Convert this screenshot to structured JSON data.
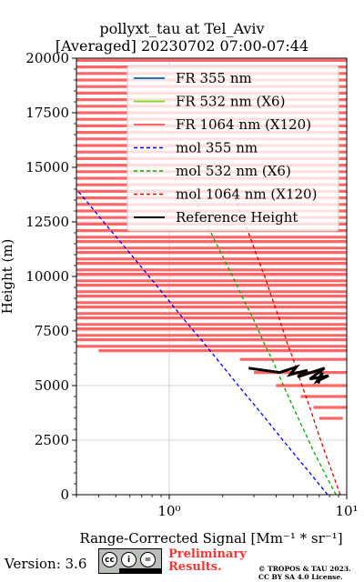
{
  "header": {
    "title_line1": "pollyxt_tau at Tel_Aviv",
    "title_line2": "[Averaged] 20230702 07:00-07:44"
  },
  "footer": {
    "version": "Version: 3.6",
    "cc_badge": [
      "cc",
      "i",
      "=",
      "BY",
      "SA"
    ],
    "preliminary_line1": "Preliminary",
    "preliminary_line2": "Results.",
    "copyright_line1": "© TROPOS & TAU 2023.",
    "copyright_line2": "CC BY SA 4.0 License."
  },
  "chart_data": {
    "type": "line",
    "xlabel": "Range-Corrected Signal [Mm⁻¹ * sr⁻¹]",
    "ylabel": "Height (m)",
    "xscale": "log",
    "xlim": [
      0.3,
      10
    ],
    "ylim": [
      0,
      20000
    ],
    "xticks": [
      1,
      10
    ],
    "xtick_labels": [
      "10⁰",
      "10¹"
    ],
    "yticks": [
      0,
      2500,
      5000,
      7500,
      10000,
      12500,
      15000,
      17500,
      20000
    ],
    "ytick_labels": [
      "0",
      "2500",
      "5000",
      "7500",
      "10000",
      "12500",
      "15000",
      "17500",
      "20000"
    ],
    "grid": true,
    "legend_position": "upper-right",
    "legend": [
      "FR 355 nm",
      "FR 532 nm (X6)",
      "FR 1064 nm (X120)",
      "mol 355 nm",
      "mol 532 nm (X6)",
      "mol 1064 nm (X120)",
      "Reference Height"
    ],
    "colors": {
      "fr355": "#1f77b4",
      "fr532": "#80df20",
      "fr1064": "#ff6666",
      "mol355": "#0000ee",
      "mol532": "#00aa00",
      "mol1064": "#dd0000",
      "ref": "#000000"
    },
    "series": [
      {
        "name": "FR 355 nm",
        "style": "solid",
        "x": [],
        "y": []
      },
      {
        "name": "FR 532 nm (X6)",
        "style": "solid",
        "x": [],
        "y": []
      },
      {
        "name": "FR 1064 nm (X120)",
        "style": "solid",
        "segments": [
          {
            "y": 3500,
            "x_min": 7.0,
            "x_max": 9.5
          },
          {
            "y": 4000,
            "x_min": 6.5,
            "x_max": 10.0
          },
          {
            "y": 4500,
            "x_min": 5.5,
            "x_max": 10.0
          },
          {
            "y": 5000,
            "x_min": 4.0,
            "x_max": 10.0
          },
          {
            "y": 5600,
            "x_min": 3.0,
            "x_max": 10.0
          },
          {
            "y": 6200,
            "x_min": 2.5,
            "x_max": 10.0
          },
          {
            "y": 6600,
            "x_min": 0.4,
            "x_max": 10.0
          },
          {
            "y": 6800,
            "x_min": 0.3,
            "x_max": 10.0
          },
          {
            "y": 7100,
            "x_min": 0.3,
            "x_max": 10.0
          },
          {
            "y": 7300,
            "x_min": 0.3,
            "x_max": 10.0
          },
          {
            "y": 7600,
            "x_min": 0.3,
            "x_max": 10.0
          },
          {
            "y": 7800,
            "x_min": 0.3,
            "x_max": 10.0
          },
          {
            "y": 8100,
            "x_min": 0.3,
            "x_max": 10.0
          },
          {
            "y": 8300,
            "x_min": 0.3,
            "x_max": 10.0
          },
          {
            "y": 8600,
            "x_min": 0.3,
            "x_max": 10.0
          },
          {
            "y": 8800,
            "x_min": 0.3,
            "x_max": 10.0
          },
          {
            "y": 9100,
            "x_min": 0.3,
            "x_max": 10.0
          },
          {
            "y": 9300,
            "x_min": 0.3,
            "x_max": 10.0
          },
          {
            "y": 9600,
            "x_min": 0.3,
            "x_max": 10.0
          },
          {
            "y": 9800,
            "x_min": 0.3,
            "x_max": 10.0
          },
          {
            "y": 10100,
            "x_min": 0.3,
            "x_max": 10.0
          },
          {
            "y": 10300,
            "x_min": 0.3,
            "x_max": 10.0
          },
          {
            "y": 10600,
            "x_min": 0.3,
            "x_max": 10.0
          },
          {
            "y": 10800,
            "x_min": 0.3,
            "x_max": 10.0
          },
          {
            "y": 11100,
            "x_min": 0.3,
            "x_max": 10.0
          },
          {
            "y": 11300,
            "x_min": 0.3,
            "x_max": 10.0
          },
          {
            "y": 11600,
            "x_min": 0.3,
            "x_max": 10.0
          },
          {
            "y": 11800,
            "x_min": 0.3,
            "x_max": 10.0
          },
          {
            "y": 12100,
            "x_min": 0.3,
            "x_max": 10.0
          },
          {
            "y": 12400,
            "x_min": 0.3,
            "x_max": 10.0
          },
          {
            "y": 12700,
            "x_min": 0.3,
            "x_max": 10.0
          },
          {
            "y": 13000,
            "x_min": 0.3,
            "x_max": 10.0
          },
          {
            "y": 13300,
            "x_min": 0.3,
            "x_max": 10.0
          },
          {
            "y": 13600,
            "x_min": 0.3,
            "x_max": 10.0
          },
          {
            "y": 13900,
            "x_min": 0.3,
            "x_max": 10.0
          },
          {
            "y": 14200,
            "x_min": 0.3,
            "x_max": 10.0
          },
          {
            "y": 14500,
            "x_min": 0.3,
            "x_max": 10.0
          },
          {
            "y": 14800,
            "x_min": 0.3,
            "x_max": 10.0
          },
          {
            "y": 15100,
            "x_min": 0.3,
            "x_max": 10.0
          },
          {
            "y": 15400,
            "x_min": 0.3,
            "x_max": 10.0
          },
          {
            "y": 15700,
            "x_min": 0.3,
            "x_max": 10.0
          },
          {
            "y": 16000,
            "x_min": 0.3,
            "x_max": 10.0
          },
          {
            "y": 16300,
            "x_min": 0.3,
            "x_max": 10.0
          },
          {
            "y": 16600,
            "x_min": 0.3,
            "x_max": 10.0
          },
          {
            "y": 16900,
            "x_min": 0.3,
            "x_max": 10.0
          },
          {
            "y": 17200,
            "x_min": 0.3,
            "x_max": 10.0
          },
          {
            "y": 17500,
            "x_min": 0.3,
            "x_max": 10.0
          },
          {
            "y": 17800,
            "x_min": 0.3,
            "x_max": 10.0
          },
          {
            "y": 18100,
            "x_min": 0.3,
            "x_max": 10.0
          },
          {
            "y": 18400,
            "x_min": 0.3,
            "x_max": 10.0
          },
          {
            "y": 18700,
            "x_min": 0.3,
            "x_max": 10.0
          },
          {
            "y": 19000,
            "x_min": 0.3,
            "x_max": 10.0
          },
          {
            "y": 19300,
            "x_min": 0.3,
            "x_max": 10.0
          },
          {
            "y": 19600,
            "x_min": 0.3,
            "x_max": 10.0
          },
          {
            "y": 19900,
            "x_min": 0.3,
            "x_max": 10.0
          }
        ]
      },
      {
        "name": "mol 355 nm",
        "style": "dashed",
        "x": [
          7.8,
          6.2,
          4.9,
          3.9,
          3.1,
          2.45,
          1.95,
          1.55,
          1.22,
          0.97,
          0.77,
          0.61,
          0.48,
          0.38,
          0.3
        ],
        "y": [
          0,
          1000,
          2000,
          3000,
          4000,
          5000,
          6000,
          7000,
          8000,
          9000,
          10000,
          11000,
          12000,
          13000,
          14000
        ]
      },
      {
        "name": "mol 532 nm (X6)",
        "style": "dashed",
        "x": [
          8.7,
          7.5,
          6.5,
          5.7,
          5.0,
          4.4,
          3.9,
          3.4,
          3.0,
          2.6,
          2.28,
          1.98,
          1.72,
          1.5,
          1.3
        ],
        "y": [
          0,
          1000,
          2000,
          3000,
          4000,
          5000,
          6000,
          7000,
          8000,
          9000,
          10000,
          11000,
          12000,
          13000,
          14000
        ]
      },
      {
        "name": "mol 1064 nm (X120)",
        "style": "dashed",
        "x": [
          9.2,
          8.3,
          7.5,
          6.8,
          6.2,
          5.6,
          5.1,
          4.6,
          4.2,
          3.8,
          3.45,
          3.1,
          2.8,
          2.5,
          2.25
        ],
        "y": [
          0,
          1000,
          2000,
          3000,
          4000,
          5000,
          6000,
          7000,
          8000,
          9000,
          10000,
          11000,
          12000,
          13000,
          14000
        ]
      },
      {
        "name": "Reference Height",
        "style": "solid",
        "x": [
          2.8,
          4.2,
          5.2,
          4.8,
          6.0,
          5.3,
          7.5,
          6.2,
          7.9,
          6.8,
          7.3,
          6.9
        ],
        "y": [
          5800,
          5600,
          5850,
          5500,
          5700,
          5400,
          5800,
          5300,
          5450,
          5200,
          5600,
          5100
        ]
      }
    ]
  }
}
